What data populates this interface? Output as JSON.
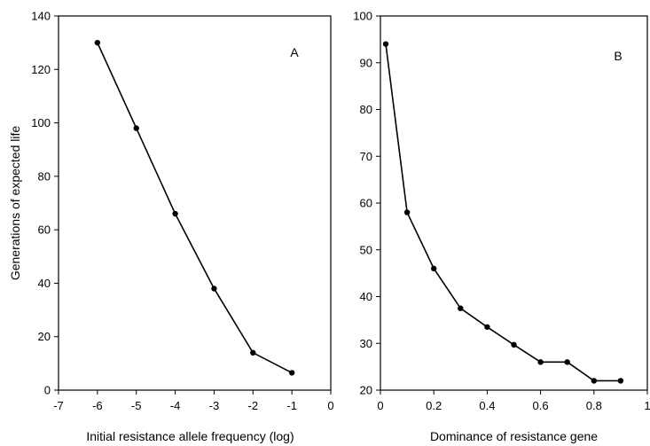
{
  "ylabel": "Generations of expected life",
  "chart_data": [
    {
      "type": "line",
      "panel_label": "A",
      "xlabel": "Initial resistance allele frequency (log)",
      "ylabel": "Generations of expected life",
      "xlim": [
        -7,
        0
      ],
      "ylim": [
        0,
        140
      ],
      "xticks": [
        -7,
        -6,
        -5,
        -4,
        -3,
        -2,
        -1,
        0
      ],
      "yticks": [
        0,
        20,
        40,
        60,
        80,
        100,
        120,
        140
      ],
      "grid": false,
      "series": [
        {
          "x": [
            -6,
            -5,
            -4,
            -3,
            -2,
            -1
          ],
          "y": [
            130,
            98,
            66,
            38,
            14,
            6.5
          ]
        }
      ]
    },
    {
      "type": "line",
      "panel_label": "B",
      "xlabel": "Dominance of resistance gene",
      "ylabel": "",
      "xlim": [
        0,
        1
      ],
      "ylim": [
        20,
        100
      ],
      "xticks": [
        0,
        0.2,
        0.4,
        0.6,
        0.8,
        1
      ],
      "yticks": [
        20,
        30,
        40,
        50,
        60,
        70,
        80,
        90,
        100
      ],
      "grid": false,
      "series": [
        {
          "x": [
            0.02,
            0.1,
            0.2,
            0.3,
            0.4,
            0.5,
            0.6,
            0.7,
            0.8,
            0.9
          ],
          "y": [
            94,
            58,
            46,
            37.5,
            33.5,
            29.7,
            26,
            26,
            22,
            22
          ]
        }
      ]
    }
  ]
}
